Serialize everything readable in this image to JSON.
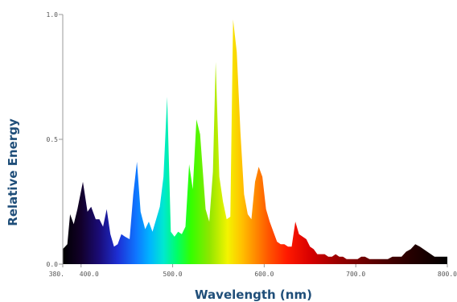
{
  "chart_data": {
    "type": "area",
    "xlabel": "Wavelength (nm)",
    "ylabel": "Relative Energy",
    "xlim": [
      380,
      800
    ],
    "ylim": [
      0,
      1.0
    ],
    "x_ticks": [
      {
        "value": 380,
        "label": "380."
      },
      {
        "value": 400,
        "label": "400.0"
      },
      {
        "value": 500,
        "label": "500.0"
      },
      {
        "value": 600,
        "label": "600.0"
      },
      {
        "value": 700,
        "label": "700.0"
      },
      {
        "value": 800,
        "label": "800.0"
      }
    ],
    "y_ticks": [
      {
        "value": 0.0,
        "label": "0.0"
      },
      {
        "value": 0.5,
        "label": "0.5"
      },
      {
        "value": 1.0,
        "label": "1.0"
      }
    ],
    "fill": "spectral color gradient by wavelength",
    "grid": false,
    "series": [
      {
        "x": [
          380,
          385,
          388,
          392,
          396,
          402,
          407,
          411,
          416,
          420,
          424,
          428,
          432,
          436,
          440,
          444,
          448,
          453,
          457,
          461,
          465,
          470,
          474,
          478,
          482,
          486,
          490,
          494,
          498,
          502,
          506,
          510,
          514,
          518,
          522,
          526,
          530,
          533,
          536,
          540,
          544,
          547,
          551,
          555,
          559,
          563,
          566,
          570,
          574,
          578,
          582,
          586,
          590,
          594,
          598,
          602,
          606,
          610,
          614,
          618,
          622,
          626,
          630,
          634,
          638,
          642,
          646,
          650,
          654,
          658,
          662,
          666,
          670,
          674,
          678,
          682,
          686,
          690,
          694,
          698,
          702,
          706,
          710,
          715,
          720,
          725,
          730,
          735,
          740,
          745,
          750,
          755,
          760,
          765,
          770,
          774,
          778,
          782,
          786,
          790,
          795,
          800
        ],
        "y": [
          0.06,
          0.08,
          0.2,
          0.16,
          0.22,
          0.33,
          0.21,
          0.23,
          0.18,
          0.18,
          0.15,
          0.22,
          0.12,
          0.07,
          0.08,
          0.12,
          0.11,
          0.1,
          0.28,
          0.41,
          0.21,
          0.14,
          0.17,
          0.13,
          0.18,
          0.23,
          0.35,
          0.67,
          0.13,
          0.11,
          0.13,
          0.12,
          0.15,
          0.4,
          0.3,
          0.58,
          0.52,
          0.37,
          0.22,
          0.17,
          0.37,
          0.81,
          0.35,
          0.25,
          0.18,
          0.19,
          0.98,
          0.85,
          0.53,
          0.28,
          0.2,
          0.18,
          0.33,
          0.39,
          0.35,
          0.22,
          0.17,
          0.13,
          0.09,
          0.08,
          0.08,
          0.07,
          0.07,
          0.17,
          0.12,
          0.11,
          0.1,
          0.07,
          0.06,
          0.04,
          0.04,
          0.04,
          0.03,
          0.03,
          0.04,
          0.03,
          0.03,
          0.02,
          0.02,
          0.02,
          0.02,
          0.03,
          0.03,
          0.02,
          0.02,
          0.02,
          0.02,
          0.02,
          0.03,
          0.03,
          0.03,
          0.05,
          0.06,
          0.08,
          0.07,
          0.06,
          0.05,
          0.04,
          0.03,
          0.03,
          0.03,
          0.03
        ]
      }
    ]
  }
}
